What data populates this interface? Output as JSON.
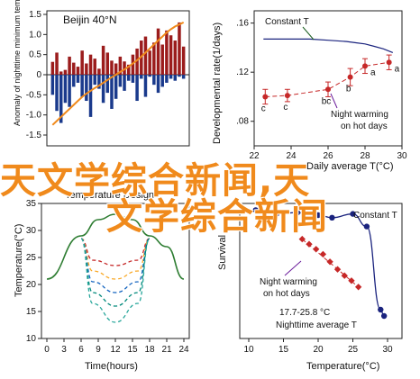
{
  "overlay": {
    "line1": "天文学综合新闻,天",
    "line2": "文学综合新闻"
  },
  "chart_data": [
    {
      "type": "bar",
      "panel": "top-left",
      "title": "Beijin 40°N",
      "ylabel": "Anomaly of nighttime minimum temperature on hot days",
      "ylim": [
        -1.5,
        1.5
      ],
      "y_ticks": [
        "1.5",
        "1.0",
        "0.5",
        "0",
        "-0.5",
        "-1.0",
        "-1.5"
      ],
      "grid": false,
      "series": [
        {
          "kind": "bar",
          "color": "#9b1c1c",
          "values": [
            0.32,
            0.55,
            0.08,
            0.12,
            0.45,
            0.3,
            0.2,
            0.6,
            0.28,
            0.5,
            0.4,
            0.15,
            0.72,
            0.55,
            0.35,
            0.28,
            0.45,
            0.33,
            0.25,
            0.5,
            0.65,
            0.85,
            0.95,
            0.6,
            0.8,
            1.15,
            0.75,
            1.1,
            0.98,
            0.85,
            1.3,
            0.7
          ]
        },
        {
          "kind": "bar",
          "color": "#1a3a8c",
          "values": [
            -0.5,
            -0.9,
            -1.2,
            -0.7,
            -0.8,
            -0.3,
            -0.2,
            -0.55,
            -0.65,
            -1.05,
            -0.25,
            -0.35,
            -0.7,
            -0.45,
            -0.85,
            -0.6,
            -0.3,
            -0.4,
            -0.15,
            -0.2,
            -0.65,
            -0.1,
            -0.55,
            -0.05,
            -0.25,
            -0.45,
            -0.3,
            -0.2,
            -0.1,
            -0.15,
            -0.05,
            -0.1
          ]
        },
        {
          "kind": "line",
          "color": "#f08a1c",
          "values": [
            -1.25,
            -1.15,
            -1.05,
            -0.95,
            -0.85,
            -0.75,
            -0.65,
            -0.55,
            -0.47,
            -0.4,
            -0.33,
            -0.27,
            -0.2,
            -0.13,
            -0.06,
            0.0,
            0.07,
            0.13,
            0.2,
            0.28,
            0.36,
            0.45,
            0.55,
            0.65,
            0.75,
            0.85,
            0.95,
            1.05,
            1.13,
            1.2,
            1.25,
            1.3
          ]
        }
      ]
    },
    {
      "type": "scatter",
      "panel": "top-right",
      "ylabel": "Developmental rate(1/days)",
      "xlabel": "Daily average T(°C)",
      "ylim": [
        0.06,
        0.17
      ],
      "xlim": [
        22,
        30
      ],
      "y_ticks": [
        ".16",
        ".12",
        ".08"
      ],
      "x_ticks": [
        "22",
        "24",
        "26",
        "28",
        "30"
      ],
      "annotations": [
        "Constant T",
        "Night warming on hot days"
      ],
      "series": [
        {
          "name": "Constant T",
          "kind": "line",
          "color": "#1a237e",
          "x": [
            22.5,
            23,
            24,
            25,
            26,
            27,
            27.5,
            28,
            28.5,
            29,
            29.5
          ],
          "y": [
            0.147,
            0.147,
            0.147,
            0.147,
            0.146,
            0.145,
            0.144,
            0.143,
            0.141,
            0.139,
            0.136
          ]
        },
        {
          "name": "Night warming on hot days",
          "kind": "scatter",
          "color": "#c62828",
          "x": [
            22.6,
            23.8,
            26.0,
            27.2,
            28.0,
            29.3
          ],
          "y": [
            0.1,
            0.101,
            0.106,
            0.116,
            0.125,
            0.128
          ],
          "err": [
            0.006,
            0.005,
            0.006,
            0.007,
            0.006,
            0.006
          ],
          "labels": [
            "c",
            "c",
            "bc",
            "b",
            "a",
            "a"
          ]
        }
      ]
    },
    {
      "type": "area",
      "panel": "bottom-left",
      "title": "Temperature Design",
      "ylabel": "Temperature(°C)",
      "xlabel": "Time(hours)",
      "ylim": [
        10,
        35
      ],
      "xlim": [
        0,
        24
      ],
      "y_ticks": [
        "35",
        "30",
        "25",
        "20",
        "15",
        "10"
      ],
      "x_ticks": [
        "0",
        "3",
        "6",
        "9",
        "12",
        "15",
        "18",
        "21",
        "24"
      ],
      "series": [
        {
          "kind": "line",
          "color": "#2e7d32",
          "x": [
            0,
            6,
            9,
            12,
            15,
            18,
            21,
            24
          ],
          "y": [
            21,
            29,
            32,
            33,
            32,
            29,
            27,
            21
          ]
        },
        {
          "kind": "line",
          "color": "#c62828",
          "x": [
            6,
            8,
            12,
            16,
            18
          ],
          "y": [
            28.5,
            24.5,
            23.5,
            24.5,
            28.5
          ]
        },
        {
          "kind": "line",
          "color": "#f9a825",
          "x": [
            6,
            8,
            12,
            16,
            18
          ],
          "y": [
            28.5,
            22.5,
            21,
            22.5,
            28.5
          ]
        },
        {
          "kind": "line",
          "color": "#1565c0",
          "x": [
            6,
            8,
            12,
            16,
            18
          ],
          "y": [
            28.5,
            20.5,
            18.5,
            20.5,
            28.5
          ]
        },
        {
          "kind": "line",
          "color": "#00897b",
          "x": [
            6,
            8,
            12,
            16,
            18
          ],
          "y": [
            28.5,
            18.5,
            16,
            18.5,
            28.5
          ]
        },
        {
          "kind": "line",
          "color": "#26a69a",
          "x": [
            6,
            8,
            12,
            16,
            18
          ],
          "y": [
            28.5,
            16.5,
            13,
            16.5,
            28.5
          ]
        }
      ]
    },
    {
      "type": "scatter",
      "panel": "bottom-right",
      "ylabel": "Survival",
      "xlabel": "Temperature(°C)",
      "ylim": [
        0,
        1
      ],
      "xlim": [
        10,
        30
      ],
      "x_ticks": [
        "10",
        "15",
        "20",
        "25",
        "30"
      ],
      "annotations": [
        "Constant T",
        "Night warming on hot days",
        "17.7-25.8 °C",
        "Nighttime average T"
      ],
      "series": [
        {
          "name": "Constant T",
          "kind": "scatter",
          "color": "#1a237e",
          "x": [
            11,
            14,
            17,
            20,
            22,
            25,
            27,
            29,
            29.5
          ],
          "y": [
            0.99,
            0.96,
            0.97,
            0.95,
            0.93,
            0.96,
            0.86,
            0.2,
            0.15
          ]
        },
        {
          "name": "Night warming on hot days",
          "kind": "scatter",
          "color": "#c62828",
          "x": [
            17.7,
            18.7,
            19.7,
            20.7,
            21.7,
            22.8,
            23.8,
            24.8,
            25.8
          ],
          "y": [
            0.76,
            0.72,
            0.68,
            0.64,
            0.58,
            0.52,
            0.47,
            0.43,
            0.38
          ]
        }
      ]
    }
  ]
}
